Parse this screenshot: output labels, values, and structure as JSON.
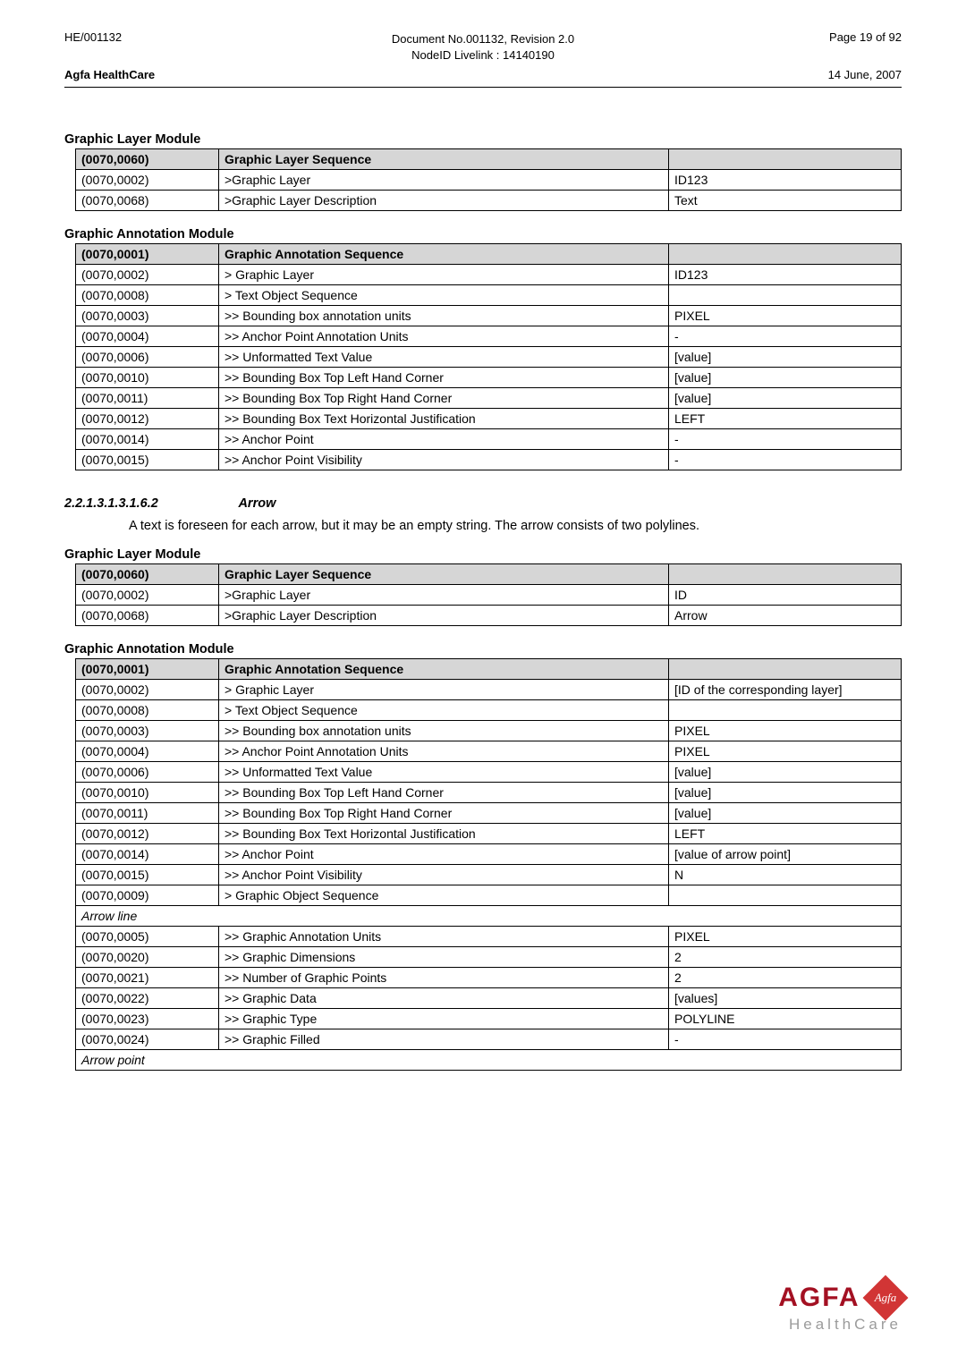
{
  "header": {
    "doc_code": "HE/001132",
    "page_info": "Page 19 of 92",
    "center1": "Document No.001132, Revision 2.0",
    "center2": "NodeID Livelink : 14140190",
    "brand": "Agfa HealthCare",
    "date": "14 June, 2007"
  },
  "tables": {
    "t1_title": "Graphic Layer Module",
    "t1": {
      "h_tag": "(0070,0060)",
      "h_name": "Graphic Layer Sequence",
      "rows": [
        [
          "(0070,0002)",
          ">Graphic Layer",
          "ID123"
        ],
        [
          "(0070,0068)",
          ">Graphic Layer Description",
          "Text"
        ]
      ]
    },
    "t2_title": "Graphic Annotation Module",
    "t2": {
      "h_tag": "(0070,0001)",
      "h_name": "Graphic Annotation Sequence",
      "rows": [
        [
          "(0070,0002)",
          "> Graphic Layer",
          "ID123"
        ],
        [
          "(0070,0008)",
          "> Text Object Sequence",
          ""
        ],
        [
          "(0070,0003)",
          ">> Bounding box annotation units",
          "PIXEL"
        ],
        [
          "(0070,0004)",
          ">> Anchor Point Annotation Units",
          "-"
        ],
        [
          "(0070,0006)",
          ">> Unformatted Text Value",
          "[value]"
        ],
        [
          "(0070,0010)",
          ">> Bounding Box Top Left Hand Corner",
          "[value]"
        ],
        [
          "(0070,0011)",
          ">> Bounding Box Top Right Hand Corner",
          "[value]"
        ],
        [
          "(0070,0012)",
          ">> Bounding Box Text Horizontal Justification",
          "LEFT"
        ],
        [
          "(0070,0014)",
          ">> Anchor Point",
          "-"
        ],
        [
          "(0070,0015)",
          ">> Anchor Point Visibility",
          "-"
        ]
      ]
    },
    "sub_num": "2.2.1.3.1.3.1.6.2",
    "sub_lbl": "Arrow",
    "sub_text": "A text is foreseen for each arrow, but it may be an empty string. The arrow consists of two polylines.",
    "t3_title": "Graphic Layer Module",
    "t3": {
      "h_tag": "(0070,0060)",
      "h_name": "Graphic Layer Sequence",
      "rows": [
        [
          "(0070,0002)",
          ">Graphic Layer",
          "ID"
        ],
        [
          "(0070,0068)",
          ">Graphic Layer Description",
          "Arrow"
        ]
      ]
    },
    "t4_title": "Graphic Annotation Module",
    "t4": {
      "h_tag": "(0070,0001)",
      "h_name": "Graphic Annotation Sequence",
      "rows_a": [
        [
          "(0070,0002)",
          "> Graphic Layer",
          "[ID of the corresponding layer]"
        ],
        [
          "(0070,0008)",
          "> Text Object Sequence",
          ""
        ],
        [
          "(0070,0003)",
          ">> Bounding box annotation units",
          "PIXEL"
        ],
        [
          "(0070,0004)",
          ">> Anchor Point Annotation Units",
          "PIXEL"
        ],
        [
          "(0070,0006)",
          ">> Unformatted Text Value",
          "[value]"
        ],
        [
          "(0070,0010)",
          ">> Bounding Box Top Left Hand Corner",
          "[value]"
        ],
        [
          "(0070,0011)",
          ">> Bounding Box Top Right Hand Corner",
          "[value]"
        ],
        [
          "(0070,0012)",
          ">> Bounding Box Text Horizontal Justification",
          "LEFT"
        ],
        [
          "(0070,0014)",
          ">> Anchor Point",
          "[value of arrow point]"
        ],
        [
          "(0070,0015)",
          ">> Anchor Point Visibility",
          "N"
        ],
        [
          "(0070,0009)",
          "> Graphic Object Sequence",
          ""
        ]
      ],
      "sub1": "Arrow line",
      "rows_b": [
        [
          "(0070,0005)",
          ">> Graphic Annotation Units",
          "PIXEL"
        ],
        [
          "(0070,0020)",
          ">> Graphic Dimensions",
          "2"
        ],
        [
          "(0070,0021)",
          ">> Number of Graphic Points",
          "2"
        ],
        [
          "(0070,0022)",
          ">> Graphic Data",
          "[values]"
        ],
        [
          "(0070,0023)",
          ">> Graphic Type",
          "POLYLINE"
        ],
        [
          "(0070,0024)",
          ">> Graphic Filled",
          "-"
        ]
      ],
      "sub2": "Arrow point"
    }
  },
  "footer": {
    "brand": "AGFA",
    "badge": "Agfa",
    "sub": "HealthCare"
  }
}
